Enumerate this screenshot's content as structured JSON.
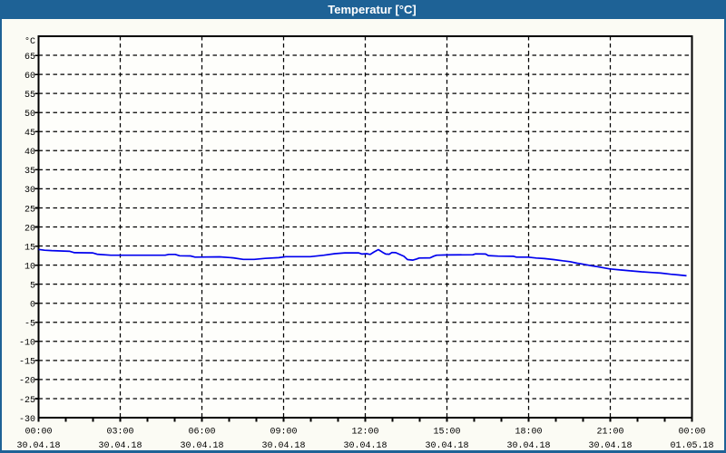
{
  "window": {
    "title": "Temperatur [°C]",
    "titlebar_color": "#1E6296",
    "border_color": "#1E6296",
    "background_color": "#FBFBF4"
  },
  "chart_data": {
    "type": "line",
    "title": "Temperatur [°C]",
    "ylabel": "°C",
    "xlabel": "",
    "ylim": [
      -30,
      70
    ],
    "y_tick_step": 5,
    "y_tick_labels": [
      "65",
      "60",
      "55",
      "50",
      "45",
      "40",
      "35",
      "30",
      "25",
      "20",
      "15",
      "10",
      "5",
      "0",
      "-5",
      "-10",
      "-15",
      "-20",
      "-25",
      "-30"
    ],
    "y_unit_label": "°C",
    "grid": "dashed",
    "legend": "none",
    "x_hours_span": 24,
    "x_major_step_hours": 3,
    "x_minor_step_hours": 1,
    "x_ticks": [
      {
        "hour": 0,
        "time": "00:00",
        "date": "30.04.18"
      },
      {
        "hour": 3,
        "time": "03:00",
        "date": "30.04.18"
      },
      {
        "hour": 6,
        "time": "06:00",
        "date": "30.04.18"
      },
      {
        "hour": 9,
        "time": "09:00",
        "date": "30.04.18"
      },
      {
        "hour": 12,
        "time": "12:00",
        "date": "30.04.18"
      },
      {
        "hour": 15,
        "time": "15:00",
        "date": "30.04.18"
      },
      {
        "hour": 18,
        "time": "18:00",
        "date": "30.04.18"
      },
      {
        "hour": 21,
        "time": "21:00",
        "date": "30.04.18"
      },
      {
        "hour": 24,
        "time": "00:00",
        "date": "01.05.18"
      }
    ],
    "line_color": "#0000EE",
    "grid_color": "#000000",
    "axis_color": "#000000",
    "plot_background": "#FEFEFB",
    "series": [
      {
        "name": "Temperatur",
        "x_hours": [
          0.0,
          0.22,
          0.48,
          1.15,
          1.32,
          1.98,
          2.15,
          2.65,
          4.65,
          4.78,
          5.02,
          5.18,
          5.58,
          5.75,
          6.65,
          7.15,
          7.52,
          7.92,
          8.32,
          8.82,
          9.08,
          9.98,
          10.48,
          10.88,
          11.25,
          11.75,
          11.88,
          12.05,
          12.18,
          12.32,
          12.48,
          12.65,
          12.75,
          12.88,
          12.98,
          13.12,
          13.28,
          13.42,
          13.55,
          13.75,
          13.88,
          13.98,
          14.38,
          14.52,
          14.62,
          14.98,
          15.95,
          16.05,
          16.42,
          16.52,
          16.88,
          17.45,
          17.55,
          17.98,
          18.28,
          18.58,
          18.92,
          19.25,
          19.52,
          19.78,
          20.05,
          20.32,
          20.52,
          20.98,
          21.35,
          21.72,
          22.15,
          22.55,
          22.85,
          23.22,
          23.52,
          23.8
        ],
        "values": [
          14.1,
          13.9,
          13.8,
          13.6,
          13.25,
          13.2,
          12.85,
          12.6,
          12.6,
          12.8,
          12.8,
          12.45,
          12.4,
          12.1,
          12.15,
          11.9,
          11.5,
          11.5,
          11.75,
          11.95,
          12.2,
          12.2,
          12.6,
          13.0,
          13.2,
          13.2,
          12.9,
          13.0,
          12.8,
          13.45,
          14.05,
          13.3,
          12.9,
          12.85,
          13.3,
          13.25,
          12.75,
          12.3,
          11.45,
          11.3,
          11.6,
          11.85,
          11.9,
          12.35,
          12.6,
          12.65,
          12.7,
          12.95,
          12.9,
          12.5,
          12.35,
          12.3,
          12.1,
          12.1,
          11.85,
          11.7,
          11.45,
          11.15,
          10.9,
          10.5,
          10.2,
          9.8,
          9.6,
          9.0,
          8.75,
          8.5,
          8.25,
          8.05,
          7.9,
          7.6,
          7.4,
          7.2
        ]
      }
    ]
  }
}
